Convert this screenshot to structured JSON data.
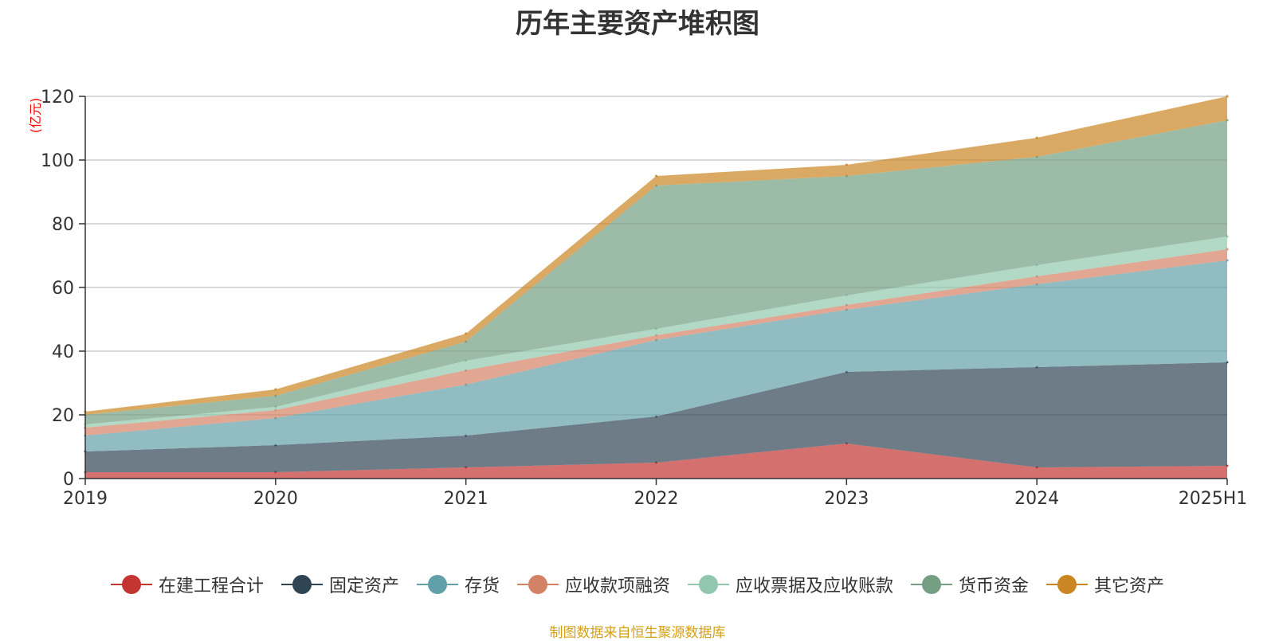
{
  "chart_data": {
    "type": "area",
    "stacked": true,
    "title": "历年主要资产堆积图",
    "ylabel": "(亿元)",
    "categories": [
      "2019",
      "2020",
      "2021",
      "2022",
      "2023",
      "2024",
      "2025H1"
    ],
    "ylim": [
      0,
      120
    ],
    "yticks": [
      0,
      20,
      40,
      60,
      80,
      100,
      120
    ],
    "grid": true,
    "legend_position": "bottom",
    "series": [
      {
        "name": "在建工程合计",
        "color": "#c23531",
        "values": [
          2,
          2,
          3.5,
          5,
          11,
          3.5,
          4
        ]
      },
      {
        "name": "固定资产",
        "color": "#2f4554",
        "values": [
          6.5,
          8.5,
          10,
          14.5,
          22.5,
          31.5,
          32.5
        ]
      },
      {
        "name": "存货",
        "color": "#61a0a8",
        "values": [
          5,
          8.5,
          16,
          24,
          19.5,
          26,
          32
        ]
      },
      {
        "name": "应收款项融资",
        "color": "#d48265",
        "values": [
          2.5,
          2.5,
          4.5,
          1.5,
          1.5,
          2.5,
          3.5
        ]
      },
      {
        "name": "应收票据及应收账款",
        "color": "#91c7ae",
        "values": [
          1,
          1,
          3,
          2,
          3,
          3.5,
          4
        ]
      },
      {
        "name": "货币资金",
        "color": "#749f83",
        "values": [
          3,
          3.5,
          6,
          45,
          37.5,
          34,
          36.5
        ]
      },
      {
        "name": "其它资产",
        "color": "#ca8622",
        "values": [
          1,
          2,
          2.5,
          3,
          3.5,
          6,
          7.5
        ]
      }
    ]
  },
  "source_note": "制图数据来自恒生聚源数据库"
}
